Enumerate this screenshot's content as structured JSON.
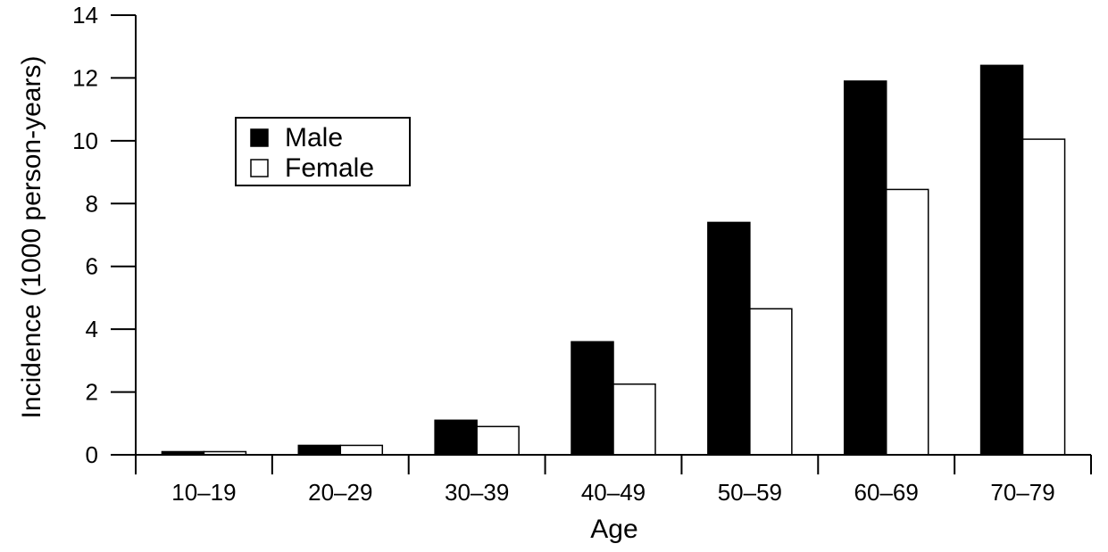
{
  "chart_data": {
    "type": "bar",
    "title": "",
    "xlabel": "Age",
    "ylabel": "Incidence (1000 person-years)",
    "categories": [
      "10–19",
      "20–29",
      "30–39",
      "40–49",
      "50–59",
      "60–69",
      "70–79"
    ],
    "series": [
      {
        "name": "Male",
        "color": "#000000",
        "values": [
          0.1,
          0.3,
          1.1,
          3.6,
          7.4,
          11.9,
          12.4
        ]
      },
      {
        "name": "Female",
        "color": "#ffffff",
        "values": [
          0.1,
          0.3,
          0.9,
          2.25,
          4.65,
          8.45,
          10.05
        ]
      }
    ],
    "ylim": [
      0,
      14
    ],
    "yticks": [
      "0",
      "2",
      "4",
      "6",
      "8",
      "10",
      "12",
      "14"
    ],
    "grid": false,
    "legend_position": "top-left"
  }
}
